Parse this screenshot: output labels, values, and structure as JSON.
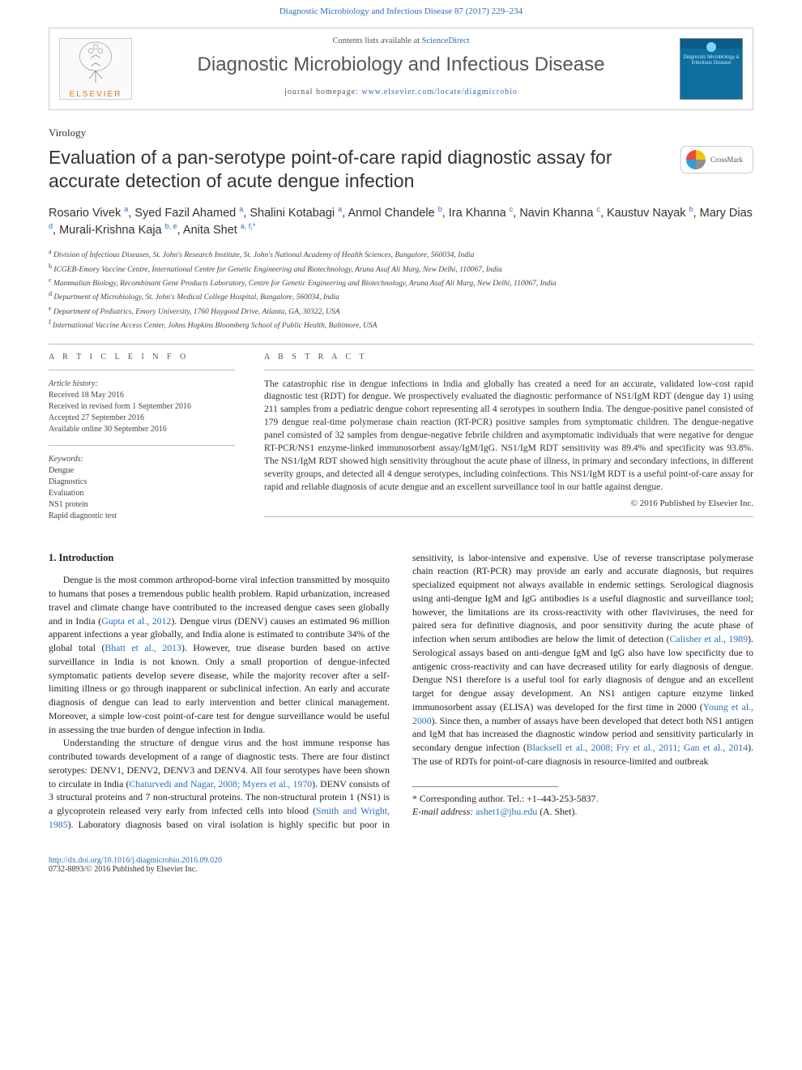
{
  "journal_ref": "Diagnostic Microbiology and Infectious Disease 87 (2017) 229–234",
  "header": {
    "contents_lists_prefix": "Contents lists available at ",
    "contents_lists_link": "ScienceDirect",
    "journal_title": "Diagnostic Microbiology and Infectious Disease",
    "homepage_prefix": "journal homepage: ",
    "homepage_link": "www.elsevier.com/locate/diagmicrobio",
    "elsevier_text": "ELSEVIER",
    "cover_text": "Diagnostic Microbiology & Infectious Disease"
  },
  "section_label": "Virology",
  "article_title": "Evaluation of a pan-serotype point-of-care rapid diagnostic assay for accurate detection of acute dengue infection",
  "crossmark_label": "CrossMark",
  "authors": [
    {
      "name": "Rosario Vivek",
      "aff": "a"
    },
    {
      "name": "Syed Fazil Ahamed",
      "aff": "a"
    },
    {
      "name": "Shalini Kotabagi",
      "aff": "a"
    },
    {
      "name": "Anmol Chandele",
      "aff": "b"
    },
    {
      "name": "Ira Khanna",
      "aff": "c"
    },
    {
      "name": "Navin Khanna",
      "aff": "c"
    },
    {
      "name": "Kaustuv Nayak",
      "aff": "b"
    },
    {
      "name": "Mary Dias",
      "aff": "d"
    },
    {
      "name": "Murali-Krishna Kaja",
      "aff": "b, e"
    },
    {
      "name": "Anita Shet",
      "aff": "a, f,",
      "corr": "*"
    }
  ],
  "affiliations": [
    {
      "key": "a",
      "text": "Division of Infectious Diseases, St. John's Research Institute, St. John's National Academy of Health Sciences, Bangalore, 560034, India"
    },
    {
      "key": "b",
      "text": "ICGEB-Emory Vaccine Centre, International Centre for Genetic Engineering and Biotechnology, Aruna Asaf Ali Marg, New Delhi, 110067, India"
    },
    {
      "key": "c",
      "text": "Mammalian Biology, Recombinant Gene Products Laboratory, Centre for Genetic Engineering and Biotechnology, Aruna Asaf Ali Marg, New Delhi, 110067, India"
    },
    {
      "key": "d",
      "text": "Department of Microbiology, St. John's Medical College Hospital, Bangalore, 560034, India"
    },
    {
      "key": "e",
      "text": "Department of Pediatrics, Emory University, 1760 Haygood Drive, Atlanta, GA, 30322, USA"
    },
    {
      "key": "f",
      "text": "International Vaccine Access Center, Johns Hopkins Bloomberg School of Public Health, Baltimore, USA"
    }
  ],
  "article_info": {
    "header": "A R T I C L E   I N F O",
    "history_label": "Article history:",
    "received": "Received 18 May 2016",
    "revised": "Received in revised form 1 September 2016",
    "accepted": "Accepted 27 September 2016",
    "online": "Available online 30 September 2016",
    "keywords_label": "Keywords:",
    "keywords": [
      "Dengue",
      "Diagnostics",
      "Evaluation",
      "NS1 protein",
      "Rapid diagnostic test"
    ]
  },
  "abstract": {
    "header": "A B S T R A C T",
    "text": "The catastrophic rise in dengue infections in India and globally has created a need for an accurate, validated low-cost rapid diagnostic test (RDT) for dengue. We prospectively evaluated the diagnostic performance of NS1/IgM RDT (dengue day 1) using 211 samples from a pediatric dengue cohort representing all 4 serotypes in southern India. The dengue-positive panel consisted of 179 dengue real-time polymerase chain reaction (RT-PCR) positive samples from symptomatic children. The dengue-negative panel consisted of 32 samples from dengue-negative febrile children and asymptomatic individuals that were negative for dengue RT-PCR/NS1 enzyme-linked immunosorbent assay/IgM/IgG. NS1/IgM RDT sensitivity was 89.4% and specificity was 93.8%. The NS1/IgM RDT showed high sensitivity throughout the acute phase of illness, in primary and secondary infections, in different severity groups, and detected all 4 dengue serotypes, including coinfections. This NS1/IgM RDT is a useful point-of-care assay for rapid and reliable diagnosis of acute dengue and an excellent surveillance tool in our battle against dengue.",
    "copyright": "© 2016 Published by Elsevier Inc."
  },
  "body": {
    "intro_heading": "1. Introduction",
    "p1_a": "Dengue is the most common arthropod-borne viral infection transmitted by mosquito to humans that poses a tremendous public health problem. Rapid urbanization, increased travel and climate change have contributed to the increased dengue cases seen globally and in India (",
    "p1_l1": "Gupta et al., 2012",
    "p1_b": "). Dengue virus (DENV) causes an estimated 96 million apparent infections a year globally, and India alone is estimated to contribute 34% of the global total (",
    "p1_l2": "Bhatt et al., 2013",
    "p1_c": "). However, true disease burden based on active surveillance in India is not known. Only a small proportion of dengue-infected symptomatic patients develop severe disease, while the majority recover after a self-limiting illness or go through inapparent or subclinical infection. An early and accurate diagnosis of dengue can lead to early intervention and better clinical management. Moreover, a simple low-cost point-of-care test for dengue surveillance would be useful in assessing the true burden of dengue infection in India.",
    "p2_a": "Understanding the structure of dengue virus and the host immune response has contributed towards development of a range of diagnostic tests. There are four distinct serotypes: DENV1, DENV2, DENV3 and DENV4. All four serotypes have been shown to circulate in India (",
    "p2_l1": "Chaturvedi and Nagar, 2008; Myers et al., 1970",
    "p2_b": "). DENV consists of 3 structural proteins and 7 non-structural proteins. The non-structural protein 1 (NS1) is a glycoprotein released very early from infected cells into blood (",
    "p2_l2": "Smith and Wright, 1985",
    "p2_c": "). Laboratory diagnosis based on viral isolation is highly specific but poor in sensitivity, is labor-intensive and expensive. Use of reverse transcriptase polymerase chain reaction (RT-PCR) may provide an early and accurate diagnosis, but requires specialized equipment not always available in endemic settings. Serological diagnosis using anti-dengue IgM and IgG antibodies is a useful diagnostic and surveillance tool; however, the limitations are its cross-reactivity with other flaviviruses, the need for paired sera for definitive diagnosis, and poor sensitivity during the acute phase of infection when serum antibodies are below the limit of detection (",
    "p2_l3": "Calisher et al., 1989",
    "p2_d": "). Serological assays based on anti-dengue IgM and IgG also have low specificity due to antigenic cross-reactivity and can have decreased utility for early diagnosis of dengue. Dengue NS1 therefore is a useful tool for early diagnosis of dengue and an excellent target for dengue assay development. An NS1 antigen capture enzyme linked immunosorbent assay (ELISA) was developed for the first time in 2000 (",
    "p2_l4": "Young et al., 2000",
    "p2_e": "). Since then, a number of assays have been developed that detect both NS1 antigen and IgM that has increased the diagnostic window period and sensitivity particularly in secondary dengue infection (",
    "p2_l5": "Blacksell et al., 2008; Fry et al., 2011; Gan et al., 2014",
    "p2_f": "). The use of RDTs for point-of-care diagnosis in resource-limited and outbreak"
  },
  "footer": {
    "corr_label": "* Corresponding author. Tel.: +1–443-253-5837.",
    "email_label": "E-mail address: ",
    "email": "ashet1@jhu.edu",
    "email_suffix": " (A. Shet).",
    "doi": "http://dx.doi.org/10.1016/j.diagmicrobio.2016.09.020",
    "issn": "0732-8893/© 2016 Published by Elsevier Inc."
  },
  "colors": {
    "link": "#2a6ebb",
    "elsevier_orange": "#e67817",
    "rule": "#bbbbbb",
    "cover_bg_top": "#0a5c8a",
    "cover_bg": "#0d6ea0"
  }
}
